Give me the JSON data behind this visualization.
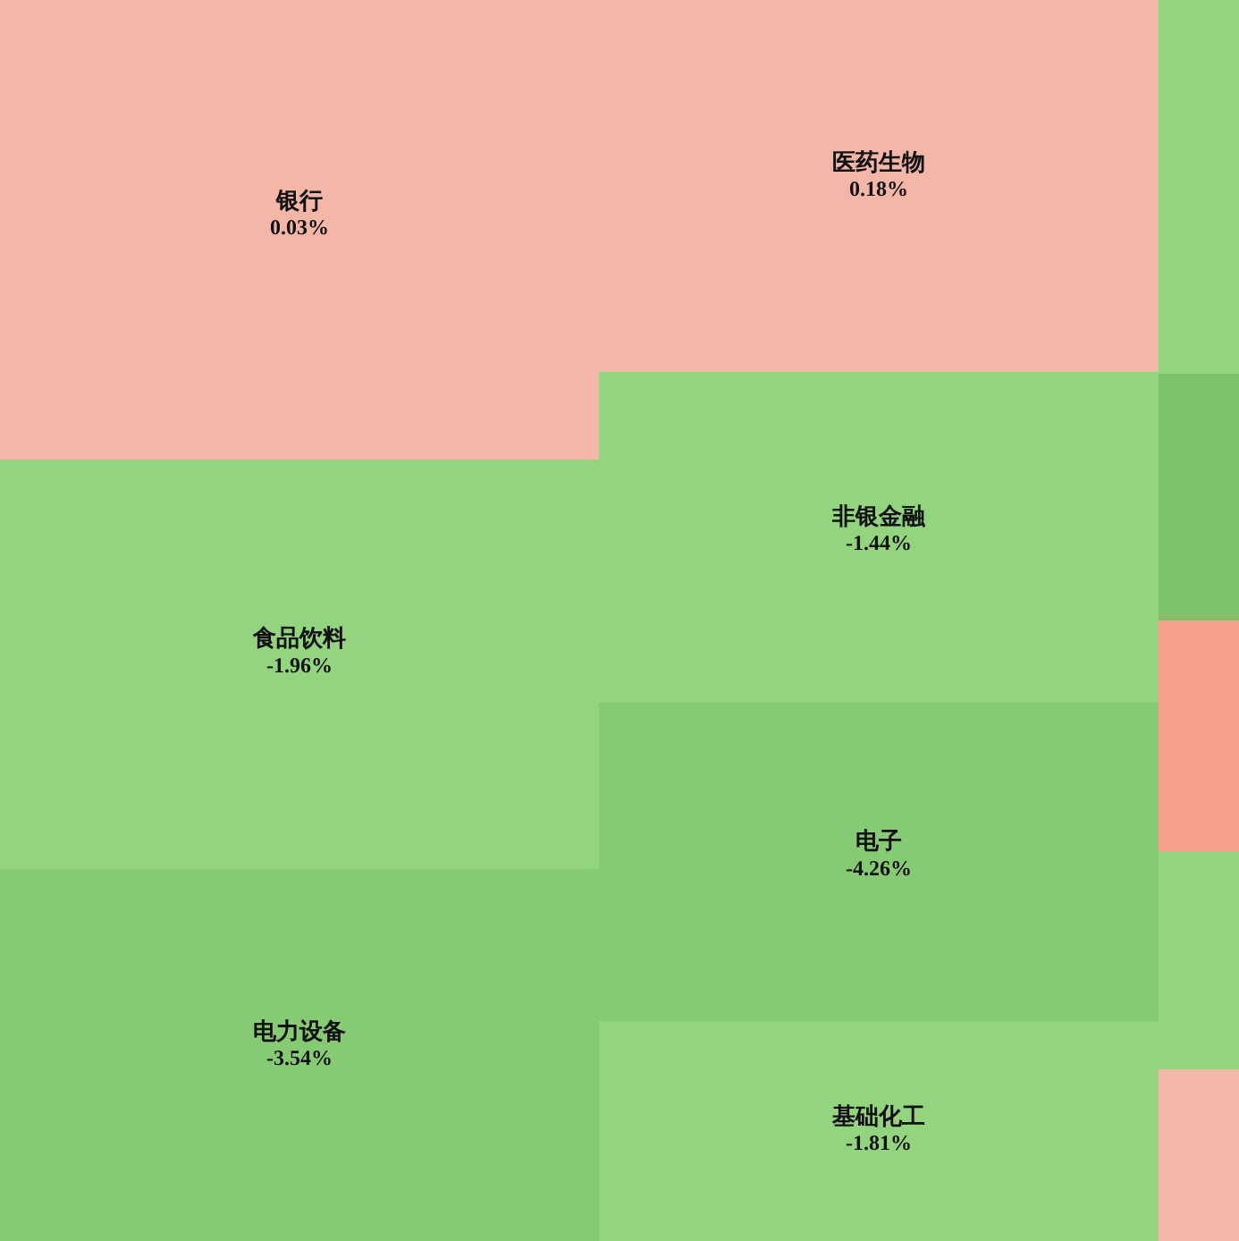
{
  "chart_data": {
    "type": "other",
    "categories": [
      "银行",
      "医药生物",
      "食品饮料",
      "电力设备",
      "非银金融",
      "电子",
      "基础化工",
      null,
      null,
      null,
      null,
      null
    ],
    "values": [
      0.03,
      0.18,
      -1.96,
      -3.54,
      -1.44,
      -4.26,
      -1.81,
      null,
      null,
      null,
      null,
      null
    ],
    "value_labels": [
      "0.03%",
      "0.18%",
      "-1.96%",
      "-3.54%",
      "-1.44%",
      "-4.26%",
      "-1.81%",
      null,
      null,
      null,
      null,
      null
    ],
    "colors": [
      "#f4b6a6",
      "#f4b6a6",
      "#93d47f",
      "#86ca74",
      "#93d47f",
      "#86ca74",
      "#93d47f",
      "#93d47f",
      "#7dc26b",
      "#f7a08c",
      "#93d47f",
      "#f4b6a6"
    ]
  }
}
